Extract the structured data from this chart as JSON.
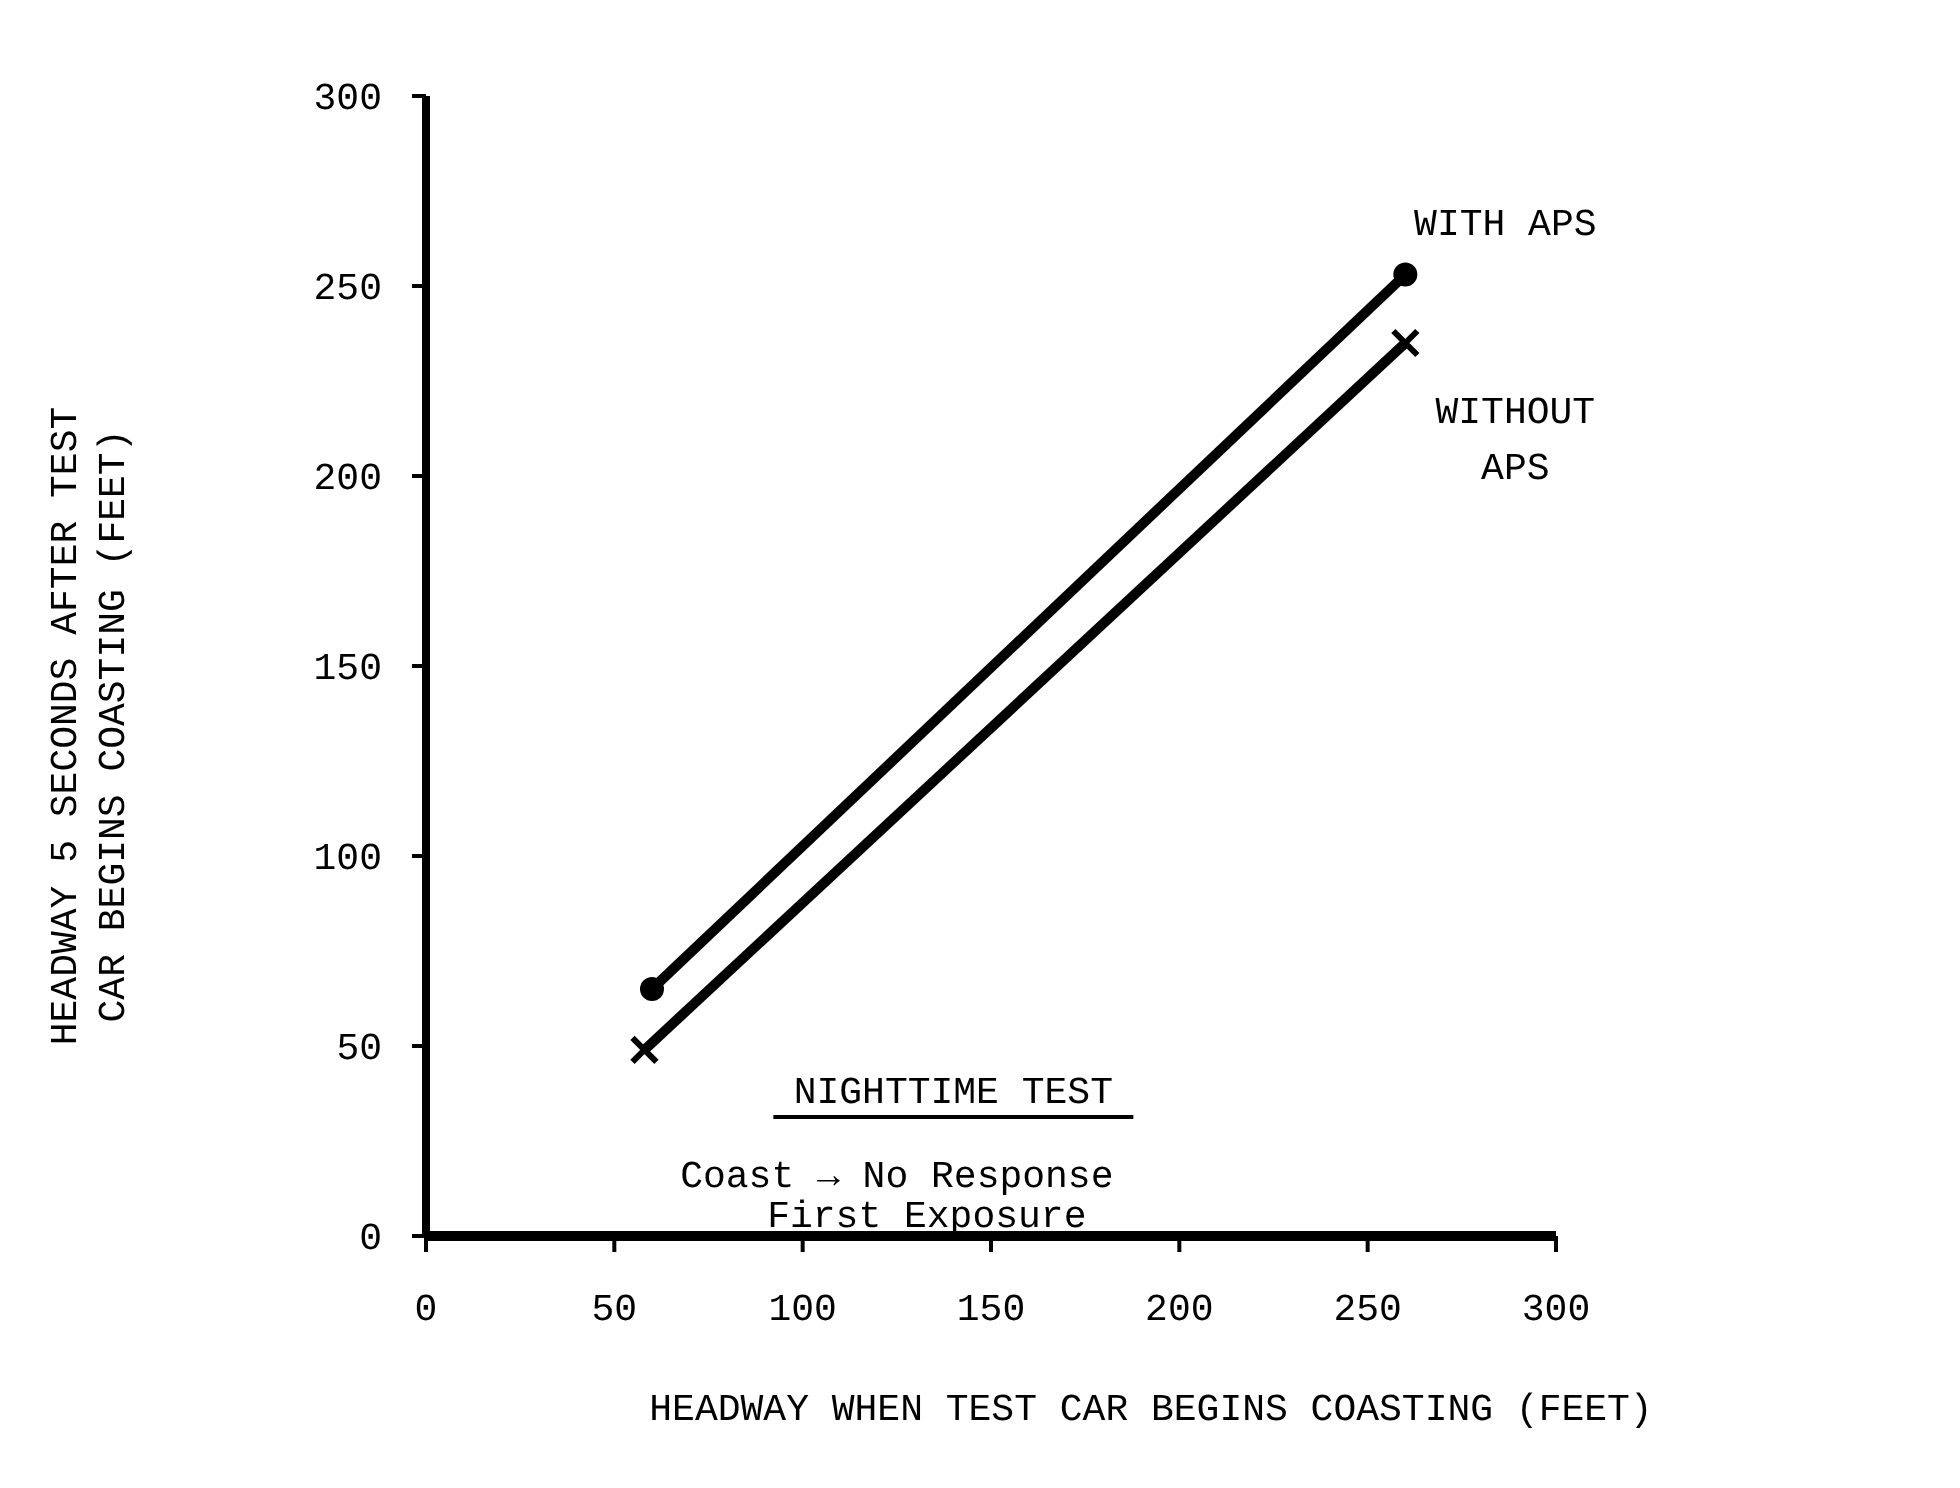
{
  "chart_data": {
    "type": "line",
    "xlabel": "HEADWAY WHEN TEST CAR BEGINS COASTING (FEET)",
    "ylabel": "HEADWAY 5 SECONDS AFTER TEST\nCAR BEGINS COASTING (FEET)",
    "xlim": [
      0,
      300
    ],
    "ylim": [
      0,
      300
    ],
    "xticks": [
      0,
      50,
      100,
      150,
      200,
      250,
      300
    ],
    "yticks": [
      0,
      50,
      100,
      150,
      200,
      250,
      300
    ],
    "grid": false,
    "series": [
      {
        "name": "WITH APS",
        "color": "#000000",
        "x": [
          60,
          260
        ],
        "values": [
          65,
          253
        ],
        "marker": "circle"
      },
      {
        "name": "WITHOUT\nAPS",
        "color": "#000000",
        "x": [
          58,
          260
        ],
        "values": [
          49,
          235
        ],
        "marker": "cross"
      }
    ],
    "annotations": [
      "NIGHTTIME TEST",
      "Coast → No Response\nFirst Exposure"
    ]
  }
}
